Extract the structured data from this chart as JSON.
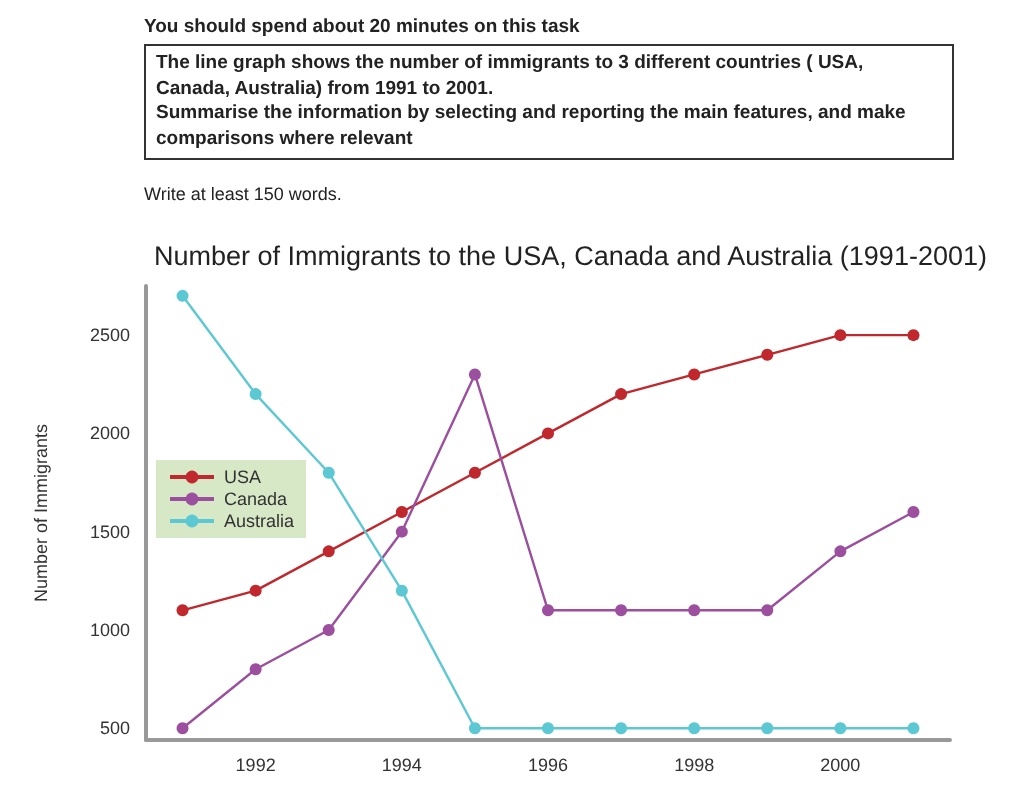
{
  "chart_data": {
    "type": "line",
    "title": "Number of Immigrants to the USA, Canada and Australia (1991-2001)",
    "ylabel": "Number of Immigrants",
    "annotations": [
      "You should spend about 20 minutes on this task",
      "The line graph shows the number of immigrants to 3 different countries ( USA, Canada, Australia) from 1991 to 2001.",
      "Summarise the information by selecting and reporting the main features, and make comparisons where relevant",
      "Write at least 150 words."
    ],
    "x": [
      1991,
      1992,
      1993,
      1994,
      1995,
      1996,
      1997,
      1998,
      1999,
      2000,
      2001
    ],
    "series": [
      {
        "name": "USA",
        "color": "#c0282d",
        "values": [
          1100,
          1200,
          1400,
          1600,
          1800,
          2000,
          2200,
          2300,
          2400,
          2500,
          2500
        ]
      },
      {
        "name": "Canada",
        "color": "#9b4f9e",
        "values": [
          500,
          800,
          1000,
          1500,
          2300,
          1100,
          1100,
          1100,
          1100,
          1400,
          1600
        ]
      },
      {
        "name": "Australia",
        "color": "#5bc8d4",
        "values": [
          2700,
          2200,
          1800,
          1200,
          500,
          500,
          500,
          500,
          500,
          500,
          500
        ]
      }
    ],
    "xlim": [
      1990.5,
      2001.5
    ],
    "xticks": [
      1992,
      1994,
      1996,
      1998,
      2000
    ],
    "ylim": [
      440,
      2750
    ],
    "yticks": [
      500,
      1000,
      1500,
      2000,
      2500
    ],
    "grid": false,
    "legend": "left",
    "marker": "circle",
    "line_style": "solid"
  }
}
